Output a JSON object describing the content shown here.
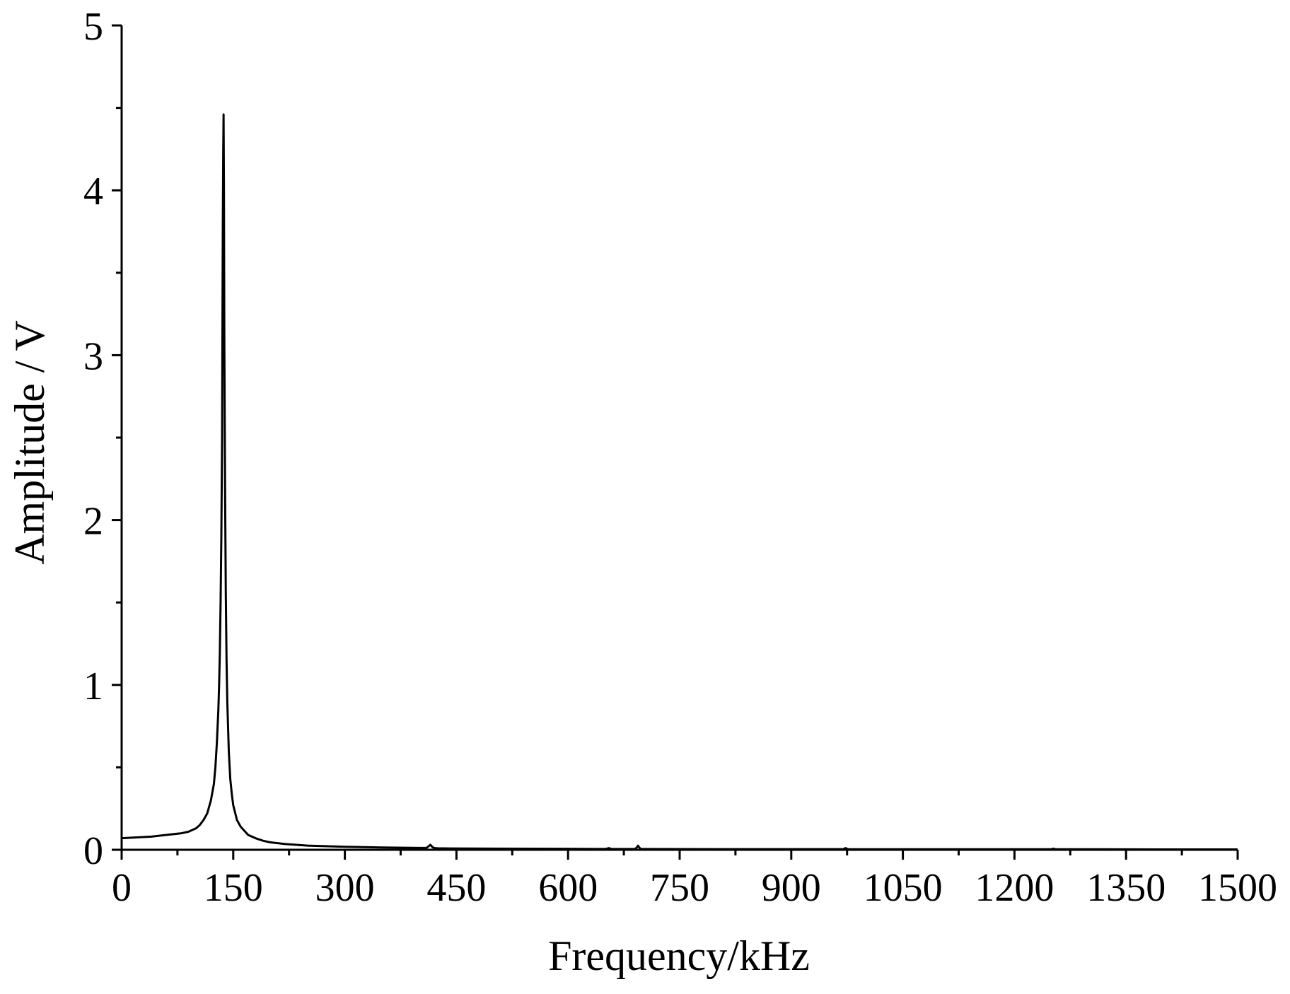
{
  "chart_data": {
    "type": "line",
    "title": "",
    "xlabel": "Frequency/kHz",
    "ylabel": "Amplitude / V",
    "xlim": [
      0,
      1500
    ],
    "ylim": [
      0,
      5
    ],
    "x_ticks": [
      0,
      150,
      300,
      450,
      600,
      750,
      900,
      1050,
      1200,
      1350,
      1500
    ],
    "y_ticks": [
      0,
      1,
      2,
      3,
      4,
      5
    ],
    "x_tick_labels": [
      "0",
      "150",
      "300",
      "450",
      "600",
      "750",
      "900",
      "1050",
      "1200",
      "1350",
      "1500"
    ],
    "y_tick_labels": [
      "0",
      "1",
      "2",
      "3",
      "4",
      "5"
    ],
    "grid": false,
    "legend": "none",
    "line_color": "#000000",
    "series": [
      {
        "x": [
          0,
          20,
          40,
          60,
          80,
          90,
          100,
          105,
          110,
          115,
          120,
          124,
          126,
          128,
          130,
          131,
          132,
          133,
          134,
          135,
          135.5,
          136,
          136.5,
          137,
          137.5,
          138,
          139,
          140,
          141,
          142,
          144,
          146,
          148,
          150,
          155,
          160,
          170,
          180,
          190,
          200,
          220,
          250,
          300,
          350,
          400,
          410,
          415,
          418,
          421,
          425,
          440,
          500,
          600,
          650,
          655,
          658,
          661,
          665,
          690,
          692,
          694,
          696,
          698,
          700,
          800,
          900,
          970,
          973,
          976,
          1000,
          1100,
          1200,
          1250,
          1252,
          1255,
          1300,
          1400,
          1500
        ],
        "y": [
          0.07,
          0.075,
          0.08,
          0.09,
          0.1,
          0.11,
          0.13,
          0.15,
          0.18,
          0.22,
          0.3,
          0.4,
          0.5,
          0.65,
          0.85,
          1.0,
          1.2,
          1.5,
          1.9,
          2.5,
          3.2,
          3.8,
          4.2,
          4.46,
          4.0,
          3.1,
          2.2,
          1.55,
          1.15,
          0.9,
          0.6,
          0.43,
          0.34,
          0.27,
          0.18,
          0.14,
          0.09,
          0.07,
          0.055,
          0.045,
          0.035,
          0.025,
          0.018,
          0.014,
          0.011,
          0.012,
          0.03,
          0.015,
          0.01,
          0.009,
          0.008,
          0.007,
          0.006,
          0.005,
          0.01,
          0.005,
          0.005,
          0.005,
          0.005,
          0.012,
          0.025,
          0.012,
          0.005,
          0.005,
          0.004,
          0.004,
          0.004,
          0.01,
          0.004,
          0.003,
          0.003,
          0.003,
          0.003,
          0.007,
          0.003,
          0.003,
          0.002,
          0.002
        ]
      }
    ]
  }
}
